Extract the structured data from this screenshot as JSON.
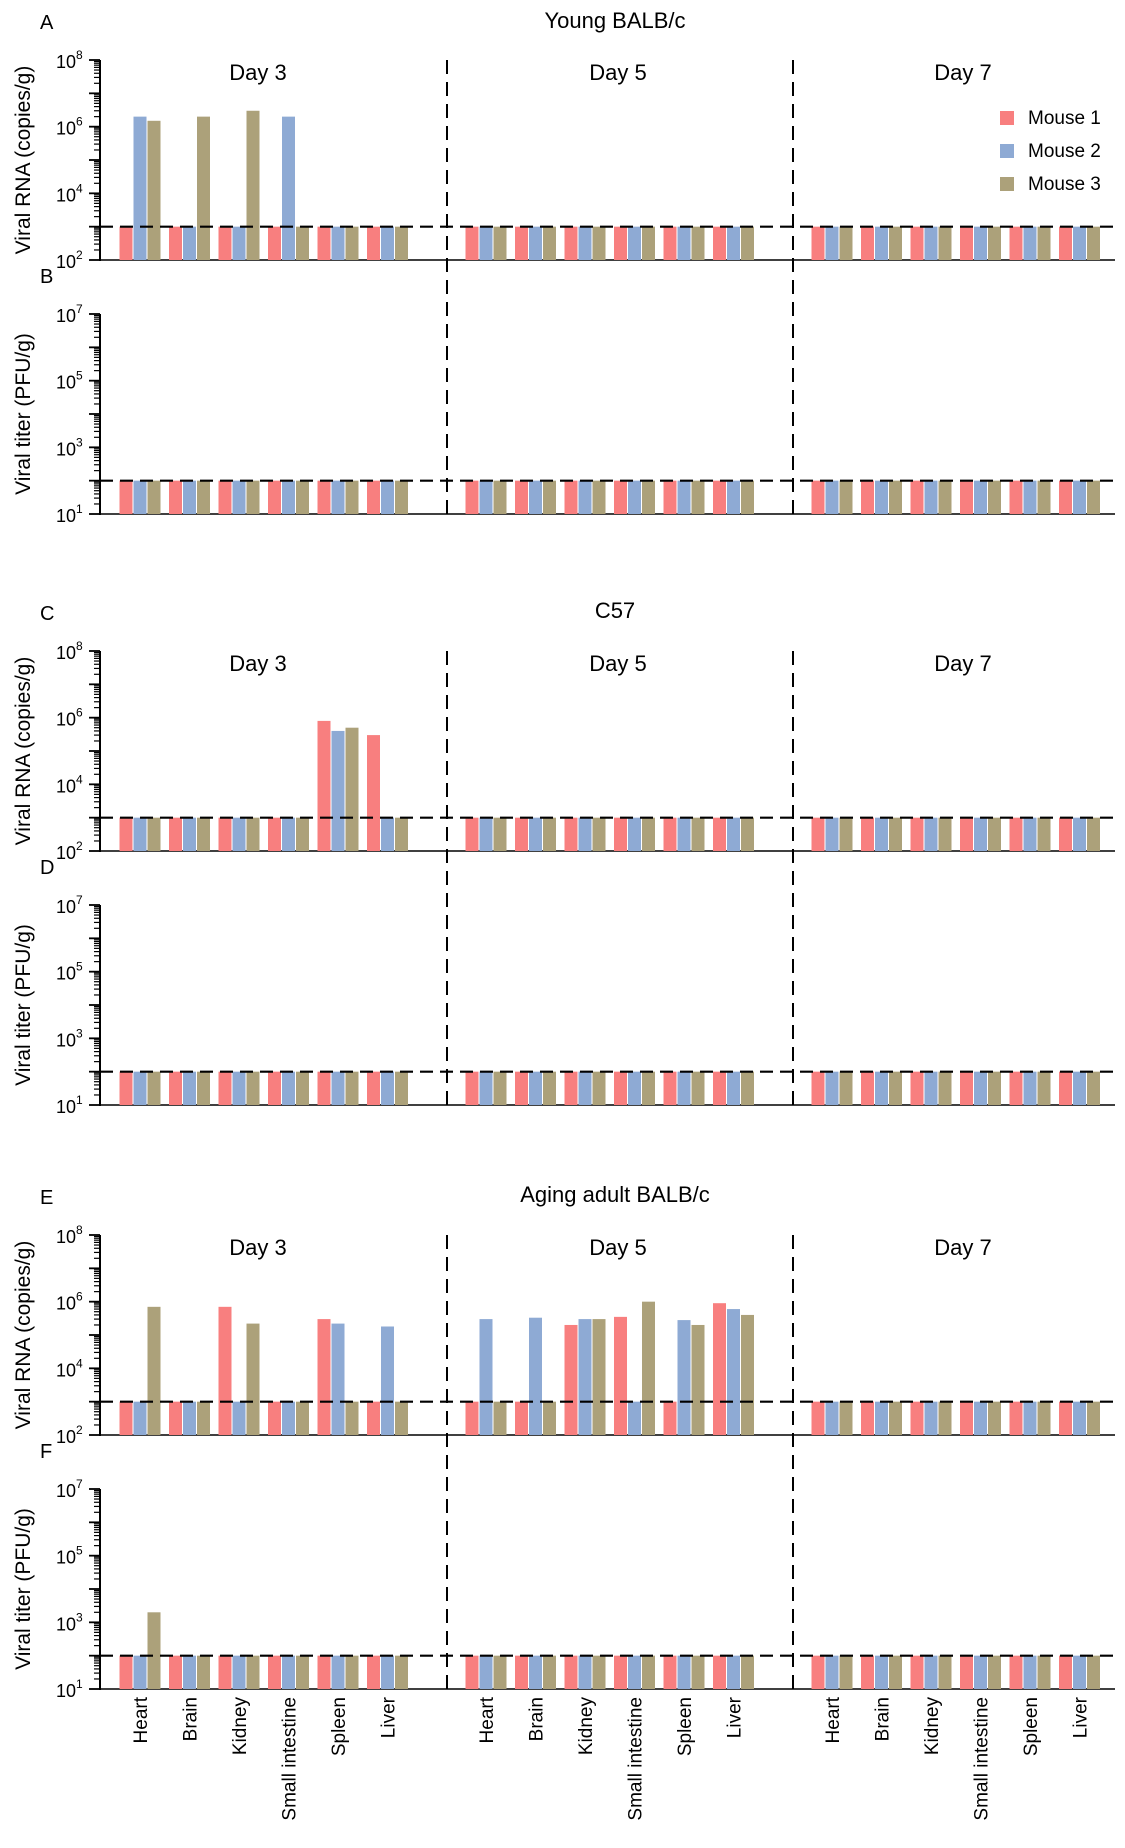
{
  "chart_data": {
    "type": "bar",
    "scale": "log10",
    "series": [
      {
        "name": "Mouse 1",
        "color": "#f87f7f"
      },
      {
        "name": "Mouse 2",
        "color": "#8eaad4"
      },
      {
        "name": "Mouse 3",
        "color": "#aca17a"
      }
    ],
    "days": [
      "Day 3",
      "Day 5",
      "Day 7"
    ],
    "categories": [
      "Heart",
      "Brain",
      "Kidney",
      "Small intestine",
      "Spleen",
      "Liver"
    ],
    "groups": [
      {
        "title": "Young BALB/c",
        "panels": [
          {
            "letter": "A",
            "ylabel": "Viral RNA (copies/g)",
            "ylim_exp": [
              2,
              8
            ],
            "ticks": [
              {
                "b": "10",
                "e": "2"
              },
              {
                "b": "10",
                "e": "4"
              },
              {
                "b": "10",
                "e": "6"
              },
              {
                "b": "10",
                "e": "8"
              }
            ],
            "limit": 1000,
            "values": [
              [
                [
                  1000,
                  2000000,
                  1500000
                ],
                [
                  1000,
                  1000,
                  2000000
                ],
                [
                  1000,
                  1000,
                  3000000
                ],
                [
                  1000,
                  2000000,
                  1000
                ],
                [
                  1000,
                  1000,
                  1000
                ],
                [
                  1000,
                  1000,
                  1000
                ]
              ],
              [
                [
                  1000,
                  1000,
                  1000
                ],
                [
                  1000,
                  1000,
                  1000
                ],
                [
                  1000,
                  1000,
                  1000
                ],
                [
                  1000,
                  1000,
                  1000
                ],
                [
                  1000,
                  1000,
                  1000
                ],
                [
                  1000,
                  1000,
                  1000
                ]
              ],
              [
                [
                  1000,
                  1000,
                  1000
                ],
                [
                  1000,
                  1000,
                  1000
                ],
                [
                  1000,
                  1000,
                  1000
                ],
                [
                  1000,
                  1000,
                  1000
                ],
                [
                  1000,
                  1000,
                  1000
                ],
                [
                  1000,
                  1000,
                  1000
                ]
              ]
            ]
          },
          {
            "letter": "B",
            "ylabel": "Viral titer (PFU/g)",
            "ylim_exp": [
              1,
              7
            ],
            "ticks": [
              {
                "b": "10",
                "e": "1"
              },
              {
                "b": "10",
                "e": "3"
              },
              {
                "b": "10",
                "e": "5"
              },
              {
                "b": "10",
                "e": "7"
              }
            ],
            "limit": 100,
            "values": [
              [
                [
                  100,
                  100,
                  100
                ],
                [
                  100,
                  100,
                  100
                ],
                [
                  100,
                  100,
                  100
                ],
                [
                  100,
                  100,
                  100
                ],
                [
                  100,
                  100,
                  100
                ],
                [
                  100,
                  100,
                  100
                ]
              ],
              [
                [
                  100,
                  100,
                  100
                ],
                [
                  100,
                  100,
                  100
                ],
                [
                  100,
                  100,
                  100
                ],
                [
                  100,
                  100,
                  100
                ],
                [
                  100,
                  100,
                  100
                ],
                [
                  100,
                  100,
                  100
                ]
              ],
              [
                [
                  100,
                  100,
                  100
                ],
                [
                  100,
                  100,
                  100
                ],
                [
                  100,
                  100,
                  100
                ],
                [
                  100,
                  100,
                  100
                ],
                [
                  100,
                  100,
                  100
                ],
                [
                  100,
                  100,
                  100
                ]
              ]
            ]
          }
        ]
      },
      {
        "title": "C57",
        "panels": [
          {
            "letter": "C",
            "ylabel": "Viral RNA (copies/g)",
            "ylim_exp": [
              2,
              8
            ],
            "ticks": [
              {
                "b": "10",
                "e": "2"
              },
              {
                "b": "10",
                "e": "4"
              },
              {
                "b": "10",
                "e": "6"
              },
              {
                "b": "10",
                "e": "8"
              }
            ],
            "limit": 1000,
            "values": [
              [
                [
                  1000,
                  1000,
                  1000
                ],
                [
                  1000,
                  1000,
                  1000
                ],
                [
                  1000,
                  1000,
                  1000
                ],
                [
                  1000,
                  1000,
                  1000
                ],
                [
                  800000,
                  400000,
                  500000
                ],
                [
                  300000,
                  1000,
                  1000
                ]
              ],
              [
                [
                  1000,
                  1000,
                  1000
                ],
                [
                  1000,
                  1000,
                  1000
                ],
                [
                  1000,
                  1000,
                  1000
                ],
                [
                  1000,
                  1000,
                  1000
                ],
                [
                  1000,
                  1000,
                  1000
                ],
                [
                  1000,
                  1000,
                  1000
                ]
              ],
              [
                [
                  1000,
                  1000,
                  1000
                ],
                [
                  1000,
                  1000,
                  1000
                ],
                [
                  1000,
                  1000,
                  1000
                ],
                [
                  1000,
                  1000,
                  1000
                ],
                [
                  1000,
                  1000,
                  1000
                ],
                [
                  1000,
                  1000,
                  1000
                ]
              ]
            ]
          },
          {
            "letter": "D",
            "ylabel": "Viral titer (PFU/g)",
            "ylim_exp": [
              1,
              7
            ],
            "ticks": [
              {
                "b": "10",
                "e": "1"
              },
              {
                "b": "10",
                "e": "3"
              },
              {
                "b": "10",
                "e": "5"
              },
              {
                "b": "10",
                "e": "7"
              }
            ],
            "limit": 100,
            "values": [
              [
                [
                  100,
                  100,
                  100
                ],
                [
                  100,
                  100,
                  100
                ],
                [
                  100,
                  100,
                  100
                ],
                [
                  100,
                  100,
                  100
                ],
                [
                  100,
                  100,
                  100
                ],
                [
                  100,
                  100,
                  100
                ]
              ],
              [
                [
                  100,
                  100,
                  100
                ],
                [
                  100,
                  100,
                  100
                ],
                [
                  100,
                  100,
                  100
                ],
                [
                  100,
                  100,
                  100
                ],
                [
                  100,
                  100,
                  100
                ],
                [
                  100,
                  100,
                  100
                ]
              ],
              [
                [
                  100,
                  100,
                  100
                ],
                [
                  100,
                  100,
                  100
                ],
                [
                  100,
                  100,
                  100
                ],
                [
                  100,
                  100,
                  100
                ],
                [
                  100,
                  100,
                  100
                ],
                [
                  100,
                  100,
                  100
                ]
              ]
            ]
          }
        ]
      },
      {
        "title": "Aging adult BALB/c",
        "panels": [
          {
            "letter": "E",
            "ylabel": "Viral RNA (copies/g)",
            "ylim_exp": [
              2,
              8
            ],
            "ticks": [
              {
                "b": "10",
                "e": "2"
              },
              {
                "b": "10",
                "e": "4"
              },
              {
                "b": "10",
                "e": "6"
              },
              {
                "b": "10",
                "e": "8"
              }
            ],
            "limit": 1000,
            "values": [
              [
                [
                  1000,
                  1000,
                  700000
                ],
                [
                  1000,
                  1000,
                  1000
                ],
                [
                  700000,
                  1000,
                  220000
                ],
                [
                  1000,
                  1000,
                  1000
                ],
                [
                  300000,
                  220000,
                  1000
                ],
                [
                  1000,
                  180000,
                  1000
                ]
              ],
              [
                [
                  1000,
                  300000,
                  1000
                ],
                [
                  1000,
                  330000,
                  1000
                ],
                [
                  200000,
                  300000,
                  300000
                ],
                [
                  350000,
                  1000,
                  1000000
                ],
                [
                  1000,
                  280000,
                  200000
                ],
                [
                  900000,
                  600000,
                  400000
                ]
              ],
              [
                [
                  1000,
                  1000,
                  1000
                ],
                [
                  1000,
                  1000,
                  1000
                ],
                [
                  1000,
                  1000,
                  1000
                ],
                [
                  1000,
                  1000,
                  1000
                ],
                [
                  1000,
                  1000,
                  1000
                ],
                [
                  1000,
                  1000,
                  1000
                ]
              ]
            ]
          },
          {
            "letter": "F",
            "ylabel": "Viral titer (PFU/g)",
            "ylim_exp": [
              1,
              7
            ],
            "ticks": [
              {
                "b": "10",
                "e": "1"
              },
              {
                "b": "10",
                "e": "3"
              },
              {
                "b": "10",
                "e": "5"
              },
              {
                "b": "10",
                "e": "7"
              }
            ],
            "limit": 100,
            "values": [
              [
                [
                  100,
                  100,
                  2000
                ],
                [
                  100,
                  100,
                  100
                ],
                [
                  100,
                  100,
                  100
                ],
                [
                  100,
                  100,
                  100
                ],
                [
                  100,
                  100,
                  100
                ],
                [
                  100,
                  100,
                  100
                ]
              ],
              [
                [
                  100,
                  100,
                  100
                ],
                [
                  100,
                  100,
                  100
                ],
                [
                  100,
                  100,
                  100
                ],
                [
                  100,
                  100,
                  100
                ],
                [
                  100,
                  100,
                  100
                ],
                [
                  100,
                  100,
                  100
                ]
              ],
              [
                [
                  100,
                  100,
                  100
                ],
                [
                  100,
                  100,
                  100
                ],
                [
                  100,
                  100,
                  100
                ],
                [
                  100,
                  100,
                  100
                ],
                [
                  100,
                  100,
                  100
                ],
                [
                  100,
                  100,
                  100
                ]
              ]
            ]
          }
        ]
      }
    ],
    "legend_position": "top-right",
    "grid": false
  }
}
